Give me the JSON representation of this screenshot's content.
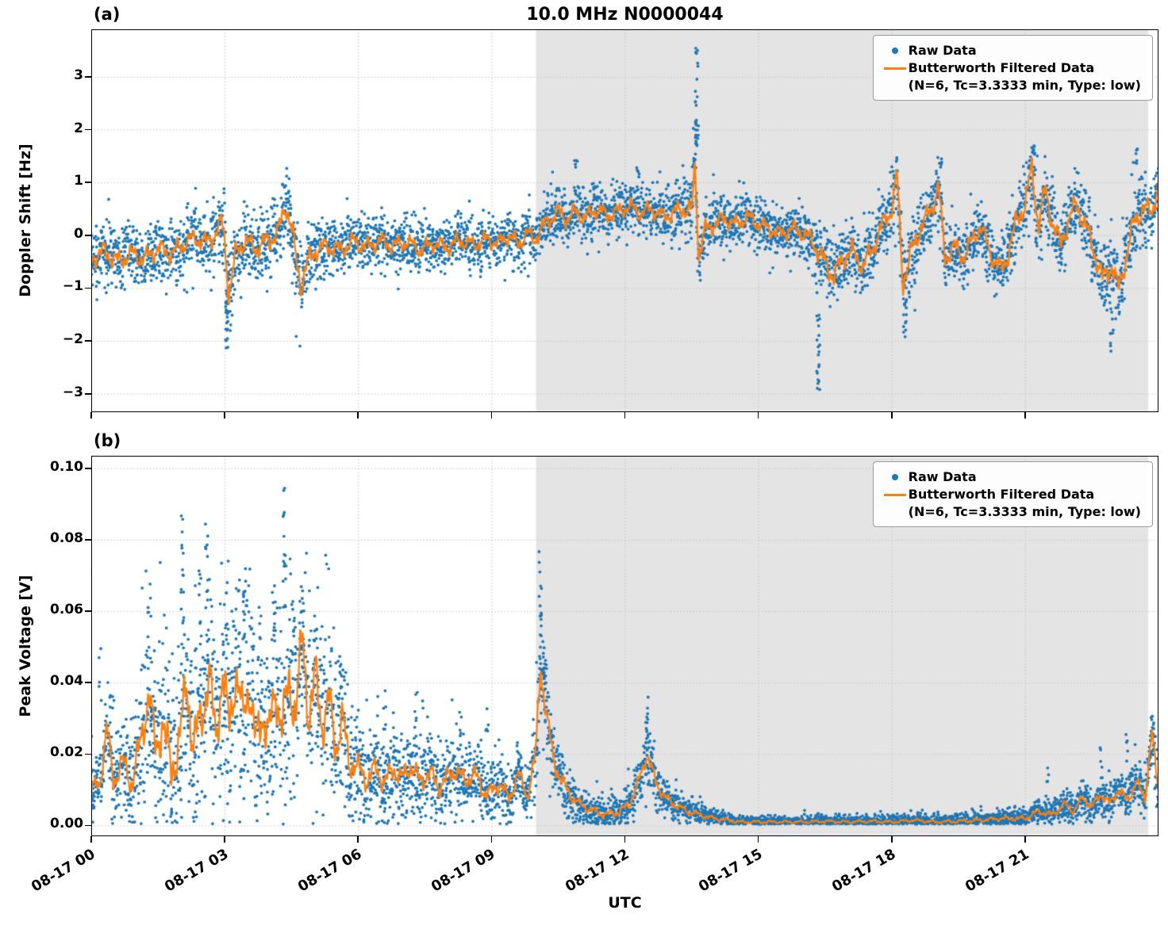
{
  "figure": {
    "title": "10.0 MHz N0000044",
    "xlabel": "UTC",
    "x_ticks": {
      "hours": [
        0,
        3,
        6,
        9,
        12,
        15,
        18,
        21
      ],
      "labels": [
        "08-17 00",
        "08-17 03",
        "08-17 06",
        "08-17 09",
        "08-17 12",
        "08-17 15",
        "08-17 18",
        "08-17 21"
      ]
    }
  },
  "legend": {
    "raw": "Raw Data",
    "filtered_line1": "Butterworth Filtered Data",
    "filtered_line2": "(N=6, Tc=3.3333 min, Type: low)"
  },
  "colors": {
    "raw": "#1f77b4",
    "filtered": "#ff7f0e",
    "shade": "#e4e4e4",
    "grid": "#c2c2c2"
  },
  "chart_data": [
    {
      "type": "scatter",
      "panel": "(a)",
      "ylabel": "Doppler Shift [Hz]",
      "xlim_hours": [
        0,
        24
      ],
      "ylim": [
        -3.35,
        3.9
      ],
      "shade_region_hours": [
        10.0,
        23.77
      ],
      "y_ticks": {
        "values": [
          3,
          2,
          1,
          0,
          -1,
          -2,
          -3
        ],
        "labels": [
          "3",
          "2",
          "1",
          "0",
          "−1",
          "−2",
          "−3"
        ]
      },
      "series": {
        "filtered": {
          "wiggle": 0.45,
          "anchors_x": [
            0,
            0.3,
            0.6,
            0.9,
            1.2,
            1.5,
            1.8,
            2.1,
            2.35,
            2.6,
            2.8,
            2.95,
            3.02,
            3.1,
            3.25,
            3.45,
            3.7,
            3.95,
            4.2,
            4.38,
            4.5,
            4.62,
            4.72,
            4.85,
            5.05,
            5.3,
            5.6,
            5.9,
            6.2,
            6.5,
            6.8,
            7.1,
            7.4,
            7.7,
            8.0,
            8.3,
            8.6,
            8.9,
            9.15,
            9.4,
            9.6,
            9.8,
            9.95,
            10.1,
            10.3,
            10.5,
            10.7,
            10.9,
            11.1,
            11.35,
            11.6,
            11.85,
            12.1,
            12.35,
            12.6,
            12.85,
            13.1,
            13.3,
            13.5,
            13.58,
            13.66,
            13.8,
            14.0,
            14.25,
            14.5,
            14.75,
            15.0,
            15.25,
            15.5,
            15.75,
            16.0,
            16.2,
            16.45,
            16.7,
            16.9,
            17.1,
            17.35,
            17.6,
            17.8,
            18.0,
            18.12,
            18.25,
            18.45,
            18.65,
            18.9,
            19.05,
            19.2,
            19.4,
            19.6,
            19.8,
            20.0,
            20.2,
            20.45,
            20.6,
            20.8,
            21.0,
            21.15,
            21.3,
            21.45,
            21.6,
            21.8,
            22.0,
            22.15,
            22.35,
            22.55,
            22.75,
            22.95,
            23.1,
            23.25,
            23.45,
            23.65,
            23.85,
            24.0
          ],
          "anchors_y": [
            -0.45,
            -0.3,
            -0.5,
            -0.35,
            -0.45,
            -0.25,
            -0.35,
            -0.15,
            -0.05,
            -0.15,
            0.05,
            0.25,
            -0.3,
            -1.1,
            -0.35,
            -0.1,
            -0.25,
            -0.12,
            0.05,
            0.6,
            0.15,
            -0.55,
            -0.95,
            -0.55,
            -0.28,
            -0.2,
            -0.28,
            -0.12,
            -0.22,
            -0.1,
            -0.2,
            -0.12,
            -0.28,
            -0.15,
            -0.22,
            -0.1,
            -0.18,
            -0.08,
            -0.15,
            0.0,
            -0.18,
            0.05,
            -0.1,
            0.1,
            0.3,
            0.45,
            0.3,
            0.45,
            0.32,
            0.5,
            0.38,
            0.45,
            0.55,
            0.42,
            0.5,
            0.35,
            0.42,
            0.52,
            0.42,
            1.35,
            -0.4,
            0.1,
            0.2,
            0.32,
            0.2,
            0.35,
            0.22,
            0.12,
            0.02,
            0.12,
            0.05,
            -0.1,
            -0.45,
            -0.78,
            -0.45,
            -0.28,
            -0.6,
            -0.2,
            0.2,
            0.5,
            1.15,
            -0.9,
            -0.3,
            0.15,
            0.5,
            0.95,
            -0.45,
            -0.2,
            -0.42,
            -0.12,
            0.18,
            -0.3,
            -0.68,
            -0.4,
            0.25,
            0.6,
            1.25,
            0.2,
            0.85,
            0.3,
            -0.2,
            0.35,
            0.6,
            0.2,
            -0.3,
            -0.85,
            -0.55,
            -1.05,
            -0.5,
            0.25,
            0.5,
            0.45,
            0.95
          ]
        },
        "raw": {
          "density": 5,
          "spread_x": [
            0,
            1,
            2,
            2.9,
            3.05,
            3.3,
            4.3,
            4.55,
            4.8,
            5.2,
            6,
            7,
            8,
            9,
            9.8,
            10.2,
            11,
            12,
            13,
            13.55,
            13.75,
            14.5,
            15.5,
            16.2,
            16.6,
            17,
            18,
            18.3,
            19,
            20,
            20.6,
            21.2,
            22,
            22.9,
            23.3,
            24
          ],
          "spread_y": [
            0.5,
            0.48,
            0.45,
            0.5,
            0.85,
            0.5,
            0.55,
            0.7,
            0.6,
            0.45,
            0.45,
            0.42,
            0.42,
            0.4,
            0.42,
            0.45,
            0.42,
            0.4,
            0.4,
            0.55,
            0.45,
            0.4,
            0.38,
            0.45,
            0.6,
            0.5,
            0.5,
            0.6,
            0.5,
            0.45,
            0.55,
            0.6,
            0.5,
            0.6,
            0.55,
            0.5
          ],
          "outliers": [
            [
              3.05,
              -2.15,
              -1.1,
              22
            ],
            [
              13.62,
              1.5,
              3.55,
              32
            ],
            [
              16.35,
              -3.0,
              -1.5,
              20
            ],
            [
              18.3,
              -1.9,
              -1.1,
              10
            ],
            [
              22.95,
              -2.3,
              -1.3,
              10
            ],
            [
              21.2,
              1.45,
              1.75,
              8
            ],
            [
              23.5,
              1.3,
              1.7,
              6
            ],
            [
              19.1,
              1.2,
              1.45,
              5
            ],
            [
              12.3,
              1.1,
              1.4,
              5
            ],
            [
              10.9,
              1.2,
              1.45,
              5
            ]
          ]
        }
      }
    },
    {
      "type": "scatter",
      "panel": "(b)",
      "ylabel": "Peak Voltage [V]",
      "xlim_hours": [
        0,
        24
      ],
      "ylim": [
        -0.003,
        0.1035
      ],
      "y_floor": 0.0,
      "shade_region_hours": [
        10.0,
        23.77
      ],
      "y_ticks": {
        "values": [
          0.1,
          0.08,
          0.06,
          0.04,
          0.02,
          0.0
        ],
        "labels": [
          "0.10",
          "0.08",
          "0.06",
          "0.04",
          "0.02",
          "0.00"
        ]
      },
      "series": {
        "filtered": {
          "wiggle": 0.35,
          "anchors_x": [
            0,
            0.2,
            0.35,
            0.5,
            0.7,
            0.9,
            1.1,
            1.3,
            1.45,
            1.6,
            1.8,
            2.0,
            2.15,
            2.3,
            2.5,
            2.65,
            2.8,
            2.95,
            3.1,
            3.25,
            3.4,
            3.55,
            3.7,
            3.85,
            4.0,
            4.15,
            4.3,
            4.45,
            4.6,
            4.75,
            4.9,
            5.05,
            5.2,
            5.35,
            5.5,
            5.65,
            5.8,
            6.0,
            6.2,
            6.4,
            6.6,
            6.8,
            7.0,
            7.2,
            7.4,
            7.6,
            7.8,
            8.0,
            8.2,
            8.4,
            8.6,
            8.8,
            9.0,
            9.2,
            9.4,
            9.6,
            9.8,
            10.0,
            10.1,
            10.25,
            10.4,
            10.6,
            10.8,
            11.0,
            11.3,
            11.6,
            11.9,
            12.1,
            12.3,
            12.5,
            12.7,
            12.9,
            13.1,
            13.4,
            13.7,
            14.0,
            14.3,
            14.6,
            15.0,
            15.5,
            16.0,
            16.5,
            17.0,
            17.5,
            18.0,
            18.5,
            19.0,
            19.5,
            20.0,
            20.5,
            21.0,
            21.3,
            21.6,
            21.9,
            22.1,
            22.3,
            22.5,
            22.7,
            22.9,
            23.1,
            23.3,
            23.5,
            23.7,
            23.85,
            24.0
          ],
          "anchors_y": [
            0.01,
            0.012,
            0.028,
            0.012,
            0.018,
            0.012,
            0.022,
            0.038,
            0.02,
            0.03,
            0.015,
            0.025,
            0.04,
            0.022,
            0.032,
            0.042,
            0.025,
            0.042,
            0.028,
            0.043,
            0.03,
            0.04,
            0.022,
            0.032,
            0.025,
            0.038,
            0.028,
            0.04,
            0.032,
            0.053,
            0.03,
            0.042,
            0.028,
            0.035,
            0.022,
            0.03,
            0.018,
            0.016,
            0.013,
            0.016,
            0.012,
            0.016,
            0.013,
            0.017,
            0.012,
            0.015,
            0.011,
            0.013,
            0.016,
            0.012,
            0.015,
            0.01,
            0.009,
            0.012,
            0.007,
            0.015,
            0.008,
            0.02,
            0.045,
            0.03,
            0.018,
            0.012,
            0.008,
            0.006,
            0.004,
            0.003,
            0.004,
            0.006,
            0.012,
            0.02,
            0.012,
            0.008,
            0.006,
            0.004,
            0.003,
            0.002,
            0.0015,
            0.001,
            0.001,
            0.001,
            0.001,
            0.0012,
            0.001,
            0.0012,
            0.001,
            0.0015,
            0.001,
            0.0012,
            0.0015,
            0.002,
            0.002,
            0.004,
            0.003,
            0.006,
            0.004,
            0.008,
            0.005,
            0.009,
            0.006,
            0.01,
            0.007,
            0.012,
            0.008,
            0.026,
            0.01
          ]
        },
        "raw": {
          "density": 5,
          "spread_x": [
            0,
            0.8,
            1.2,
            2,
            3,
            4,
            4.8,
            5.5,
            6,
            7,
            8,
            9,
            9.8,
            10.05,
            10.3,
            10.7,
            11,
            12,
            12.5,
            13,
            14,
            15,
            17,
            19,
            20.5,
            21.5,
            22.5,
            23.5,
            24
          ],
          "spread_y": [
            0.008,
            0.012,
            0.02,
            0.024,
            0.024,
            0.024,
            0.024,
            0.02,
            0.012,
            0.01,
            0.01,
            0.008,
            0.006,
            0.014,
            0.01,
            0.006,
            0.004,
            0.004,
            0.007,
            0.004,
            0.002,
            0.0015,
            0.0015,
            0.0015,
            0.002,
            0.003,
            0.004,
            0.005,
            0.006
          ],
          "outliers": [
            [
              0.2,
              0.03,
              0.053,
              5
            ],
            [
              0.45,
              0.025,
              0.045,
              4
            ],
            [
              1.3,
              0.045,
              0.068,
              8
            ],
            [
              2.05,
              0.055,
              0.094,
              15
            ],
            [
              2.45,
              0.05,
              0.072,
              8
            ],
            [
              2.6,
              0.05,
              0.087,
              12
            ],
            [
              3.05,
              0.05,
              0.075,
              10
            ],
            [
              3.45,
              0.05,
              0.079,
              10
            ],
            [
              3.8,
              0.045,
              0.062,
              6
            ],
            [
              4.1,
              0.05,
              0.072,
              8
            ],
            [
              4.35,
              0.055,
              0.098,
              16
            ],
            [
              4.55,
              0.05,
              0.066,
              6
            ],
            [
              4.75,
              0.045,
              0.07,
              8
            ],
            [
              5.05,
              0.04,
              0.061,
              8
            ],
            [
              5.6,
              0.035,
              0.05,
              6
            ],
            [
              6.6,
              0.025,
              0.038,
              6
            ],
            [
              7.3,
              0.025,
              0.041,
              6
            ],
            [
              8.3,
              0.02,
              0.035,
              6
            ],
            [
              8.9,
              0.02,
              0.033,
              5
            ],
            [
              9.6,
              0.015,
              0.026,
              5
            ],
            [
              10.1,
              0.05,
              0.077,
              14
            ],
            [
              10.2,
              0.035,
              0.055,
              8
            ],
            [
              12.5,
              0.024,
              0.036,
              10
            ],
            [
              21.5,
              0.012,
              0.018,
              4
            ],
            [
              22.7,
              0.015,
              0.022,
              4
            ],
            [
              23.3,
              0.018,
              0.028,
              5
            ],
            [
              23.85,
              0.02,
              0.033,
              6
            ]
          ]
        }
      }
    }
  ]
}
